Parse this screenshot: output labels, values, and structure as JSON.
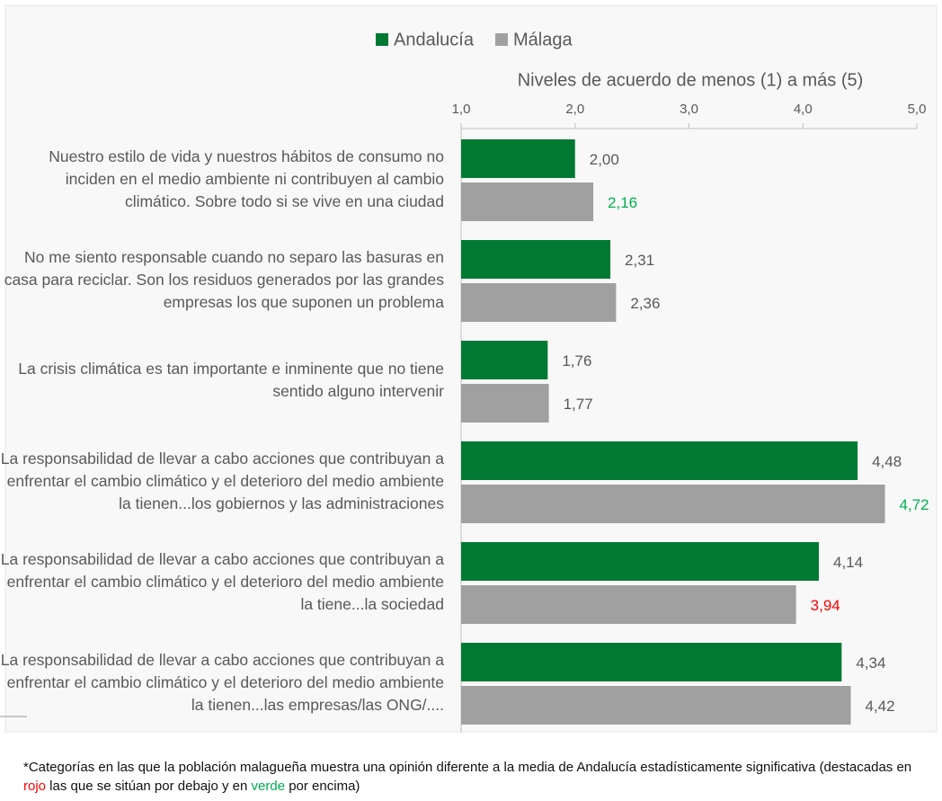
{
  "chart_data": {
    "type": "bar",
    "orientation": "horizontal",
    "axis_title": "Niveles de acuerdo de menos (1) a más (5)",
    "categories": [
      "Nuestro estilo de vida y nuestros hábitos de consumo no inciden en el medio ambiente ni contribuyen al cambio climático. Sobre todo si se vive en una ciudad",
      "No me siento responsable cuando no separo las basuras en casa para reciclar. Son los residuos generados por las grandes empresas los que suponen un problema",
      "La crisis climática es tan importante e inminente que no tiene sentido alguno intervenir",
      "La responsabilidad de llevar a cabo acciones que contribuyan a enfrentar el cambio climático y el deterioro del medio ambiente la tienen...los gobiernos y las administraciones",
      "La responsabilidad de llevar a cabo acciones que contribuyan a enfrentar el cambio climático y el deterioro del medio ambiente la tiene...la sociedad",
      "La responsabilidad de llevar a cabo acciones que contribuyan a enfrentar el cambio climático y el deterioro del medio ambiente la tienen...las empresas/las ONG/...."
    ],
    "series": [
      {
        "name": "Andalucía",
        "color": "#007a33",
        "values": [
          2.0,
          2.31,
          1.76,
          4.48,
          4.14,
          4.34
        ],
        "value_labels": [
          "2,00",
          "2,31",
          "1,76",
          "4,48",
          "4,14",
          "4,34"
        ],
        "value_label_colors": [
          "#595959",
          "#595959",
          "#595959",
          "#595959",
          "#595959",
          "#595959"
        ]
      },
      {
        "name": "Málaga",
        "color": "#a0a0a0",
        "values": [
          2.16,
          2.36,
          1.77,
          4.72,
          3.94,
          4.42
        ],
        "value_labels": [
          "2,16",
          "2,36",
          "1,77",
          "4,72",
          "3,94",
          "4,42"
        ],
        "value_label_colors": [
          "#00b050",
          "#595959",
          "#595959",
          "#00b050",
          "#ff0000",
          "#595959"
        ]
      }
    ],
    "xlim": [
      1,
      5
    ],
    "xticks": [
      {
        "value": 1,
        "label": "1,0"
      },
      {
        "value": 2,
        "label": "2,0"
      },
      {
        "value": 3,
        "label": "3,0"
      },
      {
        "value": 4,
        "label": "4,0"
      },
      {
        "value": 5,
        "label": "5,0"
      }
    ],
    "legend": "top",
    "footnote": [
      {
        "text": "*Categorías en las que la población malagueña muestra una opinión diferente a la media de Andalucía estadísticamente significativa (destacadas en ",
        "color": "#111111"
      },
      {
        "text": "rojo",
        "color": "#ff0000"
      },
      {
        "text": " las que se sitúan por debajo y en ",
        "color": "#111111"
      },
      {
        "text": "verde",
        "color": "#00b050"
      },
      {
        "text": " por encima)",
        "color": "#111111"
      }
    ]
  }
}
